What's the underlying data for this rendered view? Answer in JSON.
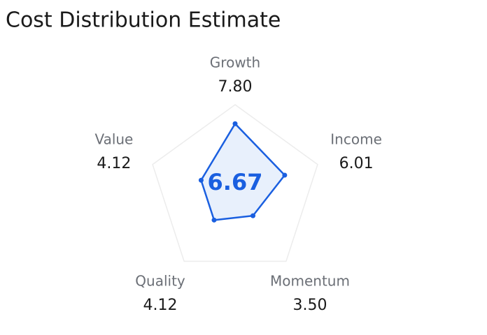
{
  "chart_data": {
    "type": "radar",
    "title": "Cost Distribution Estimate",
    "categories": [
      "Growth",
      "Income",
      "Momentum",
      "Quality",
      "Value"
    ],
    "values": [
      7.8,
      6.01,
      3.5,
      4.12,
      4.12
    ],
    "value_labels": [
      "7.80",
      "6.01",
      "3.50",
      "4.12",
      "4.12"
    ],
    "center_value": 6.67,
    "color": "#1a5fe0",
    "rlim": [
      0,
      10
    ]
  }
}
